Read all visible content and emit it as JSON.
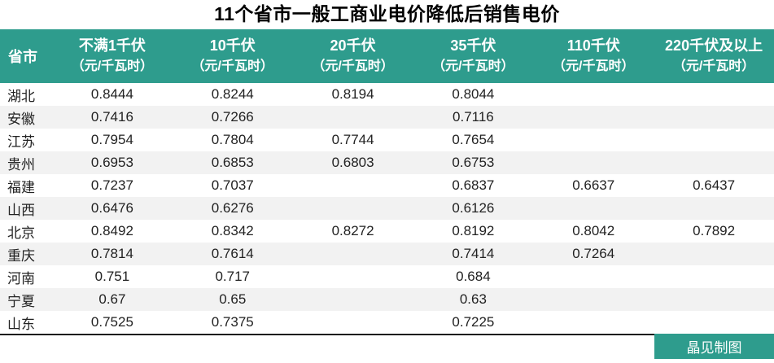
{
  "title": "11个省市一般工商业电价降低后销售电价",
  "footer": {
    "credit": "晶见制图"
  },
  "colors": {
    "header_bg": "#2E9C8D",
    "header_text": "#FFFFFF",
    "row_alt_bg": "#F2F2F2",
    "badge_bg": "#2E9C8D",
    "rule": "#1A1A1A"
  },
  "table": {
    "province_header": "省市",
    "columns": [
      {
        "label": "不满1千伏",
        "unit": "（元/千瓦时）"
      },
      {
        "label": "10千伏",
        "unit": "（元/千瓦时）"
      },
      {
        "label": "20千伏",
        "unit": "（元/千瓦时）"
      },
      {
        "label": "35千伏",
        "unit": "（元/千瓦时）"
      },
      {
        "label": "110千伏",
        "unit": "（元/千瓦时）"
      },
      {
        "label": "220千伏及以上",
        "unit": "（元/千瓦时）"
      }
    ],
    "rows": [
      {
        "province": "湖北",
        "values": [
          "0.8444",
          "0.8244",
          "0.8194",
          "0.8044",
          "",
          ""
        ]
      },
      {
        "province": "安徽",
        "values": [
          "0.7416",
          "0.7266",
          "",
          "0.7116",
          "",
          ""
        ]
      },
      {
        "province": "江苏",
        "values": [
          "0.7954",
          "0.7804",
          "0.7744",
          "0.7654",
          "",
          ""
        ]
      },
      {
        "province": "贵州",
        "values": [
          "0.6953",
          "0.6853",
          "0.6803",
          "0.6753",
          "",
          ""
        ]
      },
      {
        "province": "福建",
        "values": [
          "0.7237",
          "0.7037",
          "",
          "0.6837",
          "0.6637",
          "0.6437"
        ]
      },
      {
        "province": "山西",
        "values": [
          "0.6476",
          "0.6276",
          "",
          "0.6126",
          "",
          ""
        ]
      },
      {
        "province": "北京",
        "values": [
          "0.8492",
          "0.8342",
          "0.8272",
          "0.8192",
          "0.8042",
          "0.7892"
        ]
      },
      {
        "province": "重庆",
        "values": [
          "0.7814",
          "0.7614",
          "",
          "0.7414",
          "0.7264",
          ""
        ]
      },
      {
        "province": "河南",
        "values": [
          "0.751",
          "0.717",
          "",
          "0.684",
          "",
          ""
        ]
      },
      {
        "province": "宁夏",
        "values": [
          "0.67",
          "0.65",
          "",
          "0.63",
          "",
          ""
        ]
      },
      {
        "province": "山东",
        "values": [
          "0.7525",
          "0.7375",
          "",
          "0.7225",
          "",
          ""
        ]
      }
    ]
  },
  "chart_data": {
    "type": "table",
    "title": "11个省市一般工商业电价降低后销售电价",
    "columns": [
      "省市",
      "不满1千伏（元/千瓦时）",
      "10千伏（元/千瓦时）",
      "20千伏（元/千瓦时）",
      "35千伏（元/千瓦时）",
      "110千伏（元/千瓦时）",
      "220千伏及以上（元/千瓦时）"
    ],
    "rows": [
      [
        "湖北",
        0.8444,
        0.8244,
        0.8194,
        0.8044,
        null,
        null
      ],
      [
        "安徽",
        0.7416,
        0.7266,
        null,
        0.7116,
        null,
        null
      ],
      [
        "江苏",
        0.7954,
        0.7804,
        0.7744,
        0.7654,
        null,
        null
      ],
      [
        "贵州",
        0.6953,
        0.6853,
        0.6803,
        0.6753,
        null,
        null
      ],
      [
        "福建",
        0.7237,
        0.7037,
        null,
        0.6837,
        0.6637,
        0.6437
      ],
      [
        "山西",
        0.6476,
        0.6276,
        null,
        0.6126,
        null,
        null
      ],
      [
        "北京",
        0.8492,
        0.8342,
        0.8272,
        0.8192,
        0.8042,
        0.7892
      ],
      [
        "重庆",
        0.7814,
        0.7614,
        null,
        0.7414,
        0.7264,
        null
      ],
      [
        "河南",
        0.751,
        0.717,
        null,
        0.684,
        null,
        null
      ],
      [
        "宁夏",
        0.67,
        0.65,
        null,
        0.63,
        null,
        null
      ],
      [
        "山东",
        0.7525,
        0.7375,
        null,
        0.7225,
        null,
        null
      ]
    ],
    "credit": "晶见制图"
  }
}
